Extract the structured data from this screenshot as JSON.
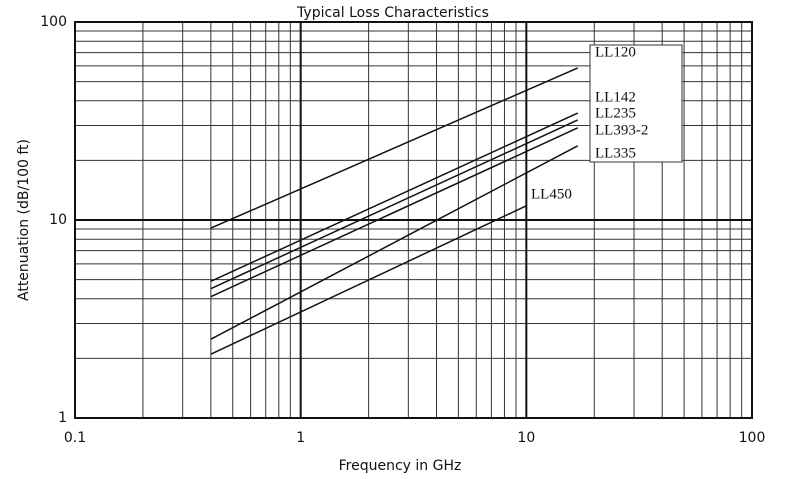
{
  "chart_data": {
    "type": "line",
    "title": "Typical Loss Characteristics",
    "xlabel": "Frequency in GHz",
    "ylabel": "Attenuation (dB/100 ft)",
    "xscale": "log",
    "yscale": "log",
    "xlim": [
      0.1,
      100
    ],
    "ylim": [
      1,
      100
    ],
    "xticks": [
      0.1,
      1,
      10,
      100
    ],
    "yticks": [
      1,
      10,
      100
    ],
    "grid": true,
    "minor_grid": true,
    "color": "#111111",
    "series": [
      {
        "name": "LL120",
        "x": [
          0.4,
          16.9
        ],
        "values": [
          9.1,
          58.6
        ]
      },
      {
        "name": "LL142",
        "x": [
          0.4,
          16.9
        ],
        "values": [
          4.9,
          34.7
        ]
      },
      {
        "name": "LL235",
        "x": [
          0.4,
          16.9
        ],
        "values": [
          4.5,
          32
        ]
      },
      {
        "name": "LL393-2",
        "x": [
          0.4,
          16.9
        ],
        "values": [
          4.1,
          29.2
        ]
      },
      {
        "name": "LL335",
        "x": [
          0.4,
          16.9
        ],
        "values": [
          2.5,
          23.7
        ]
      },
      {
        "name": "LL450",
        "x": [
          0.4,
          10
        ],
        "values": [
          2.1,
          11.8
        ]
      }
    ]
  }
}
